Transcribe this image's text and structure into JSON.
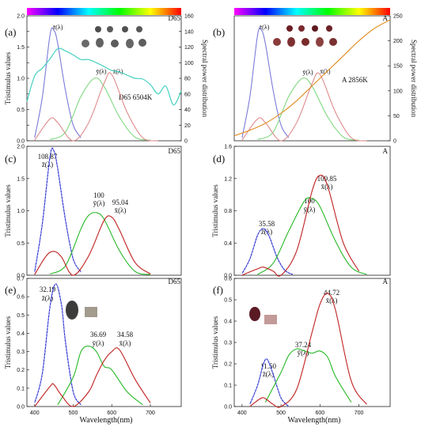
{
  "chart_data": [
    {
      "panel": "(a)",
      "type": "line",
      "illuminant": "D65",
      "ylabel": "Tristimulus values",
      "y2label": "Spectral power distribution",
      "xlim": [
        380,
        780
      ],
      "ylim": [
        0,
        2.0
      ],
      "y2lim": [
        0,
        160
      ],
      "yticks": [
        0.0,
        0.25,
        0.5,
        0.75,
        1.0,
        1.25,
        1.5,
        1.75,
        2.0
      ],
      "ytick_labels": [
        "0.0",
        "",
        "0.5",
        "",
        "1.0",
        "",
        "1.5",
        "",
        "2.0"
      ],
      "y2ticks": [
        0,
        20,
        40,
        60,
        80,
        100,
        120,
        140,
        160
      ],
      "annotation": "D65 6504K",
      "series_labels": [
        "z̄(λ)",
        "ȳ(λ)",
        "x̄(λ)"
      ],
      "series": [
        {
          "name": "z̄(λ)",
          "color": "#7b7bd9",
          "x": [
            400,
            420,
            440,
            450,
            460,
            480,
            500,
            520
          ],
          "values": [
            0.05,
            0.7,
            1.7,
            1.77,
            1.55,
            0.8,
            0.25,
            0.05
          ]
        },
        {
          "name": "ȳ(λ)",
          "color": "#7fd87f",
          "x": [
            440,
            480,
            520,
            555,
            580,
            620,
            660,
            700
          ],
          "values": [
            0.02,
            0.14,
            0.71,
            1.0,
            0.87,
            0.38,
            0.06,
            0.01
          ]
        },
        {
          "name": "x̄(λ)",
          "color": "#e08a8a",
          "x": [
            400,
            440,
            460,
            500,
            540,
            580,
            600,
            640,
            680,
            720
          ],
          "values": [
            0.01,
            0.35,
            0.29,
            0.0,
            0.29,
            0.92,
            1.06,
            0.45,
            0.05,
            0.0
          ]
        },
        {
          "name": "D65",
          "color": "#45d1c0",
          "axis": "y2",
          "x": [
            380,
            400,
            420,
            440,
            460,
            480,
            500,
            520,
            540,
            560,
            580,
            600,
            620,
            640,
            660,
            680,
            700,
            720,
            740,
            760,
            780
          ],
          "values": [
            50,
            83,
            93,
            105,
            118,
            115,
            110,
            104,
            104,
            100,
            95,
            90,
            88,
            84,
            80,
            79,
            72,
            60,
            70,
            46,
            64
          ]
        }
      ]
    },
    {
      "panel": "(b)",
      "type": "line",
      "illuminant": "A",
      "ylabel": "",
      "y2label": "Spectral power distribution",
      "xlim": [
        380,
        780
      ],
      "ylim": [
        0,
        2.0
      ],
      "y2lim": [
        0,
        250
      ],
      "y2ticks": [
        0,
        50,
        100,
        150,
        200,
        250
      ],
      "annotation": "A  2856K",
      "series_labels": [
        "z̄(λ)",
        "ȳ(λ)",
        "x̄(λ)"
      ],
      "series": [
        {
          "name": "z̄(λ)",
          "color": "#7b7bd9",
          "x": [
            400,
            420,
            440,
            450,
            460,
            480,
            500,
            520
          ],
          "values": [
            0.05,
            0.7,
            1.7,
            1.77,
            1.55,
            0.8,
            0.25,
            0.05
          ]
        },
        {
          "name": "ȳ(λ)",
          "color": "#7fd87f",
          "x": [
            440,
            480,
            520,
            555,
            580,
            620,
            660,
            700
          ],
          "values": [
            0.02,
            0.14,
            0.71,
            1.0,
            0.87,
            0.38,
            0.06,
            0.01
          ]
        },
        {
          "name": "x̄(λ)",
          "color": "#e08a8a",
          "x": [
            400,
            440,
            460,
            500,
            540,
            580,
            600,
            640,
            680,
            720
          ],
          "values": [
            0.01,
            0.35,
            0.29,
            0.0,
            0.29,
            0.92,
            1.06,
            0.45,
            0.05,
            0.0
          ]
        },
        {
          "name": "A",
          "color": "#e2902a",
          "axis": "y2",
          "x": [
            380,
            420,
            460,
            500,
            540,
            580,
            620,
            660,
            700,
            740,
            780
          ],
          "values": [
            10,
            21,
            35,
            55,
            80,
            110,
            140,
            170,
            200,
            225,
            242
          ]
        }
      ]
    },
    {
      "panel": "(c)",
      "type": "line",
      "illuminant": "D65",
      "ylabel": "Tristimulus values",
      "xlim": [
        380,
        780
      ],
      "ylim": [
        0,
        2.0
      ],
      "yticks": [
        0.0,
        0.5,
        1.0,
        1.5,
        2.0
      ],
      "ytick_labels": [
        "0.0",
        "0.5",
        "1.0",
        "1.5",
        "2.0"
      ],
      "labels": [
        {
          "value": "108.87",
          "name": "z̄(λ)"
        },
        {
          "value": "100",
          "name": "ȳ(λ)"
        },
        {
          "value": "95.04",
          "name": "x̄(λ)"
        }
      ],
      "series": [
        {
          "name": "z̄(λ)",
          "color": "#1b1bc4",
          "x": [
            400,
            420,
            440,
            450,
            460,
            480,
            500,
            520
          ],
          "values": [
            0.05,
            0.8,
            1.85,
            1.93,
            1.65,
            0.85,
            0.25,
            0.05
          ]
        },
        {
          "name": "ȳ(λ)",
          "color": "#25b825",
          "x": [
            440,
            480,
            520,
            540,
            560,
            580,
            620,
            660,
            700
          ],
          "values": [
            0.02,
            0.15,
            0.72,
            0.93,
            0.97,
            0.87,
            0.38,
            0.06,
            0.01
          ]
        },
        {
          "name": "x̄(λ)",
          "color": "#c12020",
          "x": [
            400,
            430,
            450,
            470,
            500,
            540,
            580,
            600,
            620,
            660,
            700
          ],
          "values": [
            0.01,
            0.3,
            0.37,
            0.28,
            0.0,
            0.3,
            0.85,
            0.9,
            0.7,
            0.2,
            0.02
          ]
        }
      ]
    },
    {
      "panel": "(d)",
      "type": "line",
      "illuminant": "A",
      "ylabel": "Tristimulus values",
      "xlim": [
        380,
        780
      ],
      "ylim": [
        0,
        1.6
      ],
      "yticks": [
        0.0,
        0.4,
        0.8,
        1.2,
        1.6
      ],
      "ytick_labels": [
        "0.0",
        "0.4",
        "0.8",
        "1.2",
        "1.6"
      ],
      "labels": [
        {
          "value": "35.58",
          "name": "z̄(λ)"
        },
        {
          "value": "100",
          "name": "ȳ(λ)"
        },
        {
          "value": "109.85",
          "name": "x̄(λ)"
        }
      ],
      "series": [
        {
          "name": "z̄(λ)",
          "color": "#1b1bc4",
          "x": [
            400,
            420,
            440,
            455,
            470,
            490,
            510,
            530
          ],
          "values": [
            0.02,
            0.2,
            0.5,
            0.58,
            0.48,
            0.22,
            0.06,
            0.01
          ]
        },
        {
          "name": "ȳ(λ)",
          "color": "#25b825",
          "x": [
            440,
            480,
            520,
            560,
            580,
            600,
            640,
            680,
            720
          ],
          "values": [
            0.01,
            0.15,
            0.55,
            0.92,
            0.95,
            0.85,
            0.42,
            0.1,
            0.01
          ]
        },
        {
          "name": "x̄(λ)",
          "color": "#c12020",
          "x": [
            400,
            440,
            455,
            480,
            500,
            540,
            580,
            600,
            620,
            660,
            700
          ],
          "values": [
            0.0,
            0.08,
            0.1,
            0.05,
            0.0,
            0.3,
            1.05,
            1.24,
            1.1,
            0.4,
            0.05
          ]
        }
      ]
    },
    {
      "panel": "(e)",
      "type": "line",
      "illuminant": "D65",
      "ylabel": "Tristimulus values",
      "xlabel": "Wavelength(nm)",
      "xlim": [
        380,
        780
      ],
      "ylim": [
        0,
        0.7
      ],
      "xticks": [
        400,
        500,
        600,
        700
      ],
      "yticks": [
        0.0,
        0.1,
        0.2,
        0.3,
        0.4,
        0.5,
        0.6,
        0.7
      ],
      "ytick_labels": [
        "0.0",
        "0.1",
        "0.2",
        "0.3",
        "0.4",
        "0.5",
        "0.6",
        "0.7"
      ],
      "labels": [
        {
          "value": "32.19",
          "name": "z̄(λ)"
        },
        {
          "value": "36.69",
          "name": "ȳ(λ)"
        },
        {
          "value": "34.58",
          "name": "x̄(λ)"
        }
      ],
      "series": [
        {
          "name": "z̄(λ)",
          "color": "#1b1bc4",
          "x": [
            400,
            420,
            440,
            455,
            470,
            480,
            500,
            520
          ],
          "values": [
            0.02,
            0.18,
            0.55,
            0.67,
            0.55,
            0.35,
            0.08,
            0.01
          ]
        },
        {
          "name": "ȳ(λ)",
          "color": "#25b825",
          "x": [
            460,
            500,
            520,
            540,
            560,
            580,
            600,
            640,
            680
          ],
          "values": [
            0.01,
            0.16,
            0.3,
            0.33,
            0.3,
            0.22,
            0.2,
            0.08,
            0.01
          ]
        },
        {
          "name": "x̄(λ)",
          "color": "#c12020",
          "x": [
            400,
            440,
            450,
            470,
            500,
            540,
            560,
            580,
            600,
            620,
            660,
            700
          ],
          "values": [
            0.0,
            0.11,
            0.12,
            0.06,
            0.0,
            0.08,
            0.17,
            0.25,
            0.3,
            0.31,
            0.15,
            0.02
          ]
        }
      ]
    },
    {
      "panel": "(f)",
      "type": "line",
      "illuminant": "A",
      "ylabel": "Tristimulus values",
      "xlabel": "Wavelength(nm)",
      "xlim": [
        380,
        780
      ],
      "ylim": [
        0,
        0.6
      ],
      "xticks": [
        400,
        500,
        600,
        700
      ],
      "yticks": [
        0.0,
        0.1,
        0.2,
        0.3,
        0.4,
        0.5,
        0.6
      ],
      "ytick_labels": [
        "0.0",
        "0.1",
        "0.2",
        "0.3",
        "0.4",
        "0.5",
        "0.6"
      ],
      "labels": [
        {
          "value": "11.50",
          "name": "z̄(λ)"
        },
        {
          "value": "37.24",
          "name": "ȳ(λ)"
        },
        {
          "value": "44.72",
          "name": "x̄(λ)"
        }
      ],
      "series": [
        {
          "name": "z̄(λ)",
          "color": "#1b1bc4",
          "x": [
            420,
            440,
            455,
            465,
            480,
            500,
            520
          ],
          "values": [
            0.01,
            0.1,
            0.2,
            0.22,
            0.15,
            0.04,
            0.0
          ]
        },
        {
          "name": "ȳ(λ)",
          "color": "#25b825",
          "x": [
            460,
            500,
            520,
            540,
            560,
            580,
            600,
            620,
            640,
            680
          ],
          "values": [
            0.02,
            0.16,
            0.24,
            0.27,
            0.26,
            0.25,
            0.26,
            0.23,
            0.14,
            0.02
          ]
        },
        {
          "name": "x̄(λ)",
          "color": "#c12020",
          "x": [
            420,
            450,
            465,
            480,
            500,
            540,
            580,
            600,
            620,
            640,
            680,
            720
          ],
          "values": [
            0.0,
            0.04,
            0.03,
            0.01,
            0.0,
            0.08,
            0.35,
            0.48,
            0.53,
            0.45,
            0.12,
            0.01
          ]
        }
      ]
    }
  ],
  "colorbar_stops": [
    "#ff00ff",
    "#0000ff",
    "#00ffff",
    "#00ff00",
    "#ffff00",
    "#ff0000"
  ],
  "colors": {
    "axis": "#222222",
    "gem_dark": "#555555",
    "gem_red": "#6b1e24",
    "swatch_e": "#a29b8e",
    "swatch_f": "#c29a98"
  }
}
